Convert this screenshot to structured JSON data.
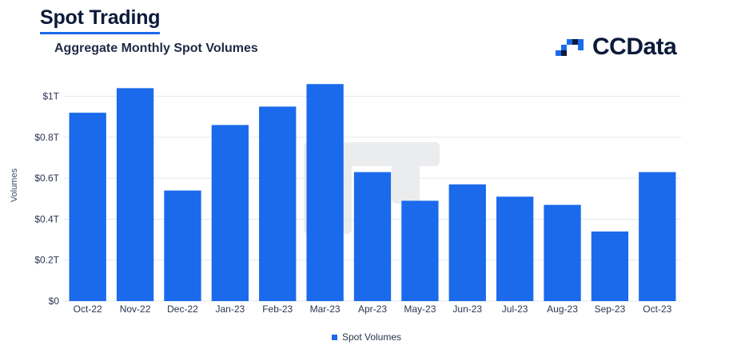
{
  "header": {
    "title": "Spot Trading",
    "subtitle": "Aggregate Monthly Spot Volumes"
  },
  "logo": {
    "text": "CCData",
    "icon": "ccdata-logo-icon"
  },
  "colors": {
    "bar": "#1a6aeb",
    "title": "#0b1a3a",
    "accent": "#1a6aeb"
  },
  "chart_data": {
    "type": "bar",
    "categories": [
      "Oct-22",
      "Nov-22",
      "Dec-22",
      "Jan-23",
      "Feb-23",
      "Mar-23",
      "Apr-23",
      "May-23",
      "Jun-23",
      "Jul-23",
      "Aug-23",
      "Sep-23",
      "Oct-23"
    ],
    "series": [
      {
        "name": "Spot Volumes",
        "values": [
          0.92,
          1.04,
          0.54,
          0.86,
          0.95,
          1.06,
          0.63,
          0.49,
          0.57,
          0.51,
          0.47,
          0.34,
          0.63
        ]
      }
    ],
    "ylabel": "Volumes",
    "xlabel": "",
    "ylim": [
      0,
      1.1
    ],
    "yticks": [
      0,
      0.2,
      0.4,
      0.6,
      0.8,
      1
    ],
    "ytick_labels": [
      "$0",
      "$0.2T",
      "$0.4T",
      "$0.6T",
      "$0.8T",
      "$1T"
    ],
    "grid": true,
    "legend_position": "bottom-center"
  }
}
